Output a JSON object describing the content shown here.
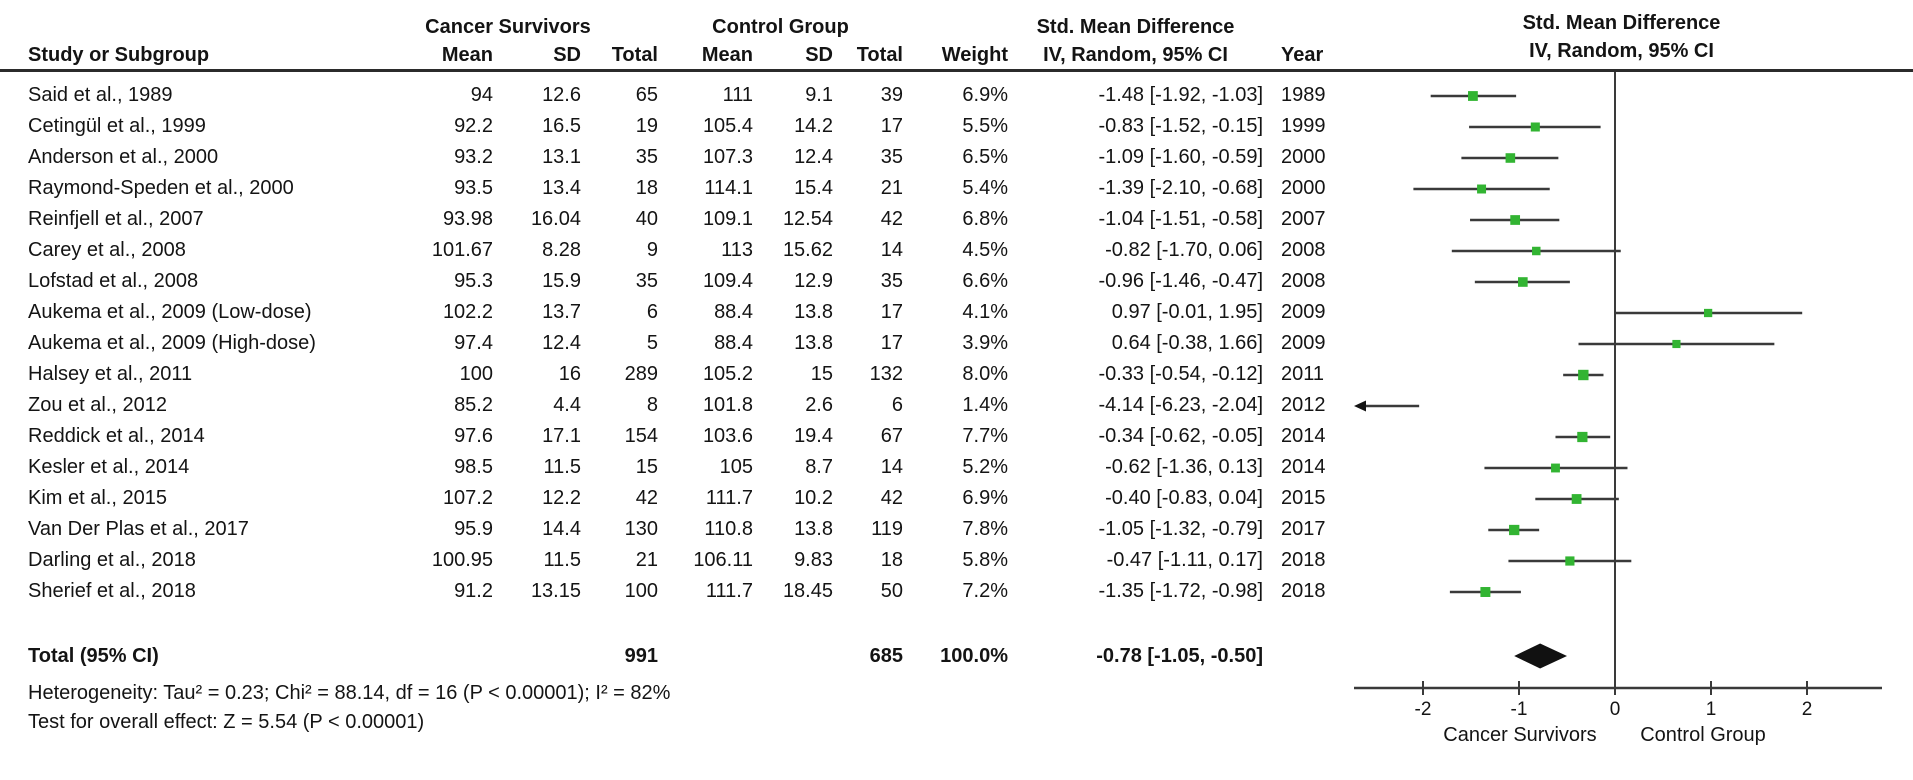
{
  "labels": {
    "study_col": "Study or Subgroup",
    "group1": "Cancer Survivors",
    "group2": "Control Group",
    "mean": "Mean",
    "sd": "SD",
    "total": "Total",
    "weight": "Weight",
    "iv_col": "IV, Random, 95% CI",
    "year": "Year",
    "smd": "Std. Mean Difference",
    "plot_title": "Std. Mean Difference",
    "plot_subtitle": "IV, Random, 95% CI"
  },
  "chart_data": {
    "type": "forest",
    "title": "Std. Mean Difference",
    "subtitle": "IV, Random, 95% CI",
    "effect_measure": "Std. Mean Difference",
    "model": "IV, Random, 95% CI",
    "xlim": [
      -2.72,
      2.78
    ],
    "ticks": [
      -2,
      -1,
      0,
      1,
      2
    ],
    "zero_line": 0,
    "axis_label_left": "Cancer Survivors",
    "axis_label_right": "Control Group",
    "marker_color": "#32b432",
    "studies": [
      {
        "name": "Said et al., 1989",
        "cs_mean": "94",
        "cs_sd": "12.6",
        "cs_total": "65",
        "c_mean": "111",
        "c_sd": "9.1",
        "c_total": "39",
        "weight": "6.9%",
        "weight_val": 6.9,
        "est": -1.48,
        "lo": -1.92,
        "hi": -1.03,
        "ci": "-1.48 [-1.92, -1.03]",
        "year": "1989"
      },
      {
        "name": "Cetingül et al., 1999",
        "cs_mean": "92.2",
        "cs_sd": "16.5",
        "cs_total": "19",
        "c_mean": "105.4",
        "c_sd": "14.2",
        "c_total": "17",
        "weight": "5.5%",
        "weight_val": 5.5,
        "est": -0.83,
        "lo": -1.52,
        "hi": -0.15,
        "ci": "-0.83 [-1.52, -0.15]",
        "year": "1999"
      },
      {
        "name": "Anderson et al., 2000",
        "cs_mean": "93.2",
        "cs_sd": "13.1",
        "cs_total": "35",
        "c_mean": "107.3",
        "c_sd": "12.4",
        "c_total": "35",
        "weight": "6.5%",
        "weight_val": 6.5,
        "est": -1.09,
        "lo": -1.6,
        "hi": -0.59,
        "ci": "-1.09 [-1.60, -0.59]",
        "year": "2000"
      },
      {
        "name": "Raymond-Speden et al., 2000",
        "cs_mean": "93.5",
        "cs_sd": "13.4",
        "cs_total": "18",
        "c_mean": "114.1",
        "c_sd": "15.4",
        "c_total": "21",
        "weight": "5.4%",
        "weight_val": 5.4,
        "est": -1.39,
        "lo": -2.1,
        "hi": -0.68,
        "ci": "-1.39 [-2.10, -0.68]",
        "year": "2000"
      },
      {
        "name": "Reinfjell et al., 2007",
        "cs_mean": "93.98",
        "cs_sd": "16.04",
        "cs_total": "40",
        "c_mean": "109.1",
        "c_sd": "12.54",
        "c_total": "42",
        "weight": "6.8%",
        "weight_val": 6.8,
        "est": -1.04,
        "lo": -1.51,
        "hi": -0.58,
        "ci": "-1.04 [-1.51, -0.58]",
        "year": "2007"
      },
      {
        "name": "Carey et al., 2008",
        "cs_mean": "101.67",
        "cs_sd": "8.28",
        "cs_total": "9",
        "c_mean": "113",
        "c_sd": "15.62",
        "c_total": "14",
        "weight": "4.5%",
        "weight_val": 4.5,
        "est": -0.82,
        "lo": -1.7,
        "hi": 0.06,
        "ci": "-0.82 [-1.70, 0.06]",
        "year": "2008"
      },
      {
        "name": "Lofstad et al., 2008",
        "cs_mean": "95.3",
        "cs_sd": "15.9",
        "cs_total": "35",
        "c_mean": "109.4",
        "c_sd": "12.9",
        "c_total": "35",
        "weight": "6.6%",
        "weight_val": 6.6,
        "est": -0.96,
        "lo": -1.46,
        "hi": -0.47,
        "ci": "-0.96 [-1.46, -0.47]",
        "year": "2008"
      },
      {
        "name": "Aukema et al., 2009 (Low-dose)",
        "cs_mean": "102.2",
        "cs_sd": "13.7",
        "cs_total": "6",
        "c_mean": "88.4",
        "c_sd": "13.8",
        "c_total": "17",
        "weight": "4.1%",
        "weight_val": 4.1,
        "est": 0.97,
        "lo": -0.01,
        "hi": 1.95,
        "ci": "0.97 [-0.01, 1.95]",
        "year": "2009"
      },
      {
        "name": "Aukema et al., 2009 (High-dose)",
        "cs_mean": "97.4",
        "cs_sd": "12.4",
        "cs_total": "5",
        "c_mean": "88.4",
        "c_sd": "13.8",
        "c_total": "17",
        "weight": "3.9%",
        "weight_val": 3.9,
        "est": 0.64,
        "lo": -0.38,
        "hi": 1.66,
        "ci": "0.64 [-0.38, 1.66]",
        "year": "2009"
      },
      {
        "name": "Halsey et al., 2011",
        "cs_mean": "100",
        "cs_sd": "16",
        "cs_total": "289",
        "c_mean": "105.2",
        "c_sd": "15",
        "c_total": "132",
        "weight": "8.0%",
        "weight_val": 8.0,
        "est": -0.33,
        "lo": -0.54,
        "hi": -0.12,
        "ci": "-0.33 [-0.54, -0.12]",
        "year": "2011"
      },
      {
        "name": "Zou et al., 2012",
        "cs_mean": "85.2",
        "cs_sd": "4.4",
        "cs_total": "8",
        "c_mean": "101.8",
        "c_sd": "2.6",
        "c_total": "6",
        "weight": "1.4%",
        "weight_val": 1.4,
        "est": -4.14,
        "lo": -6.23,
        "hi": -2.04,
        "ci": "-4.14 [-6.23, -2.04]",
        "year": "2012"
      },
      {
        "name": "Reddick et al., 2014",
        "cs_mean": "97.6",
        "cs_sd": "17.1",
        "cs_total": "154",
        "c_mean": "103.6",
        "c_sd": "19.4",
        "c_total": "67",
        "weight": "7.7%",
        "weight_val": 7.7,
        "est": -0.34,
        "lo": -0.62,
        "hi": -0.05,
        "ci": "-0.34 [-0.62, -0.05]",
        "year": "2014"
      },
      {
        "name": "Kesler et al., 2014",
        "cs_mean": "98.5",
        "cs_sd": "11.5",
        "cs_total": "15",
        "c_mean": "105",
        "c_sd": "8.7",
        "c_total": "14",
        "weight": "5.2%",
        "weight_val": 5.2,
        "est": -0.62,
        "lo": -1.36,
        "hi": 0.13,
        "ci": "-0.62 [-1.36, 0.13]",
        "year": "2014"
      },
      {
        "name": "Kim et al., 2015",
        "cs_mean": "107.2",
        "cs_sd": "12.2",
        "cs_total": "42",
        "c_mean": "111.7",
        "c_sd": "10.2",
        "c_total": "42",
        "weight": "6.9%",
        "weight_val": 6.9,
        "est": -0.4,
        "lo": -0.83,
        "hi": 0.04,
        "ci": "-0.40 [-0.83, 0.04]",
        "year": "2015"
      },
      {
        "name": "Van Der Plas et al., 2017",
        "cs_mean": "95.9",
        "cs_sd": "14.4",
        "cs_total": "130",
        "c_mean": "110.8",
        "c_sd": "13.8",
        "c_total": "119",
        "weight": "7.8%",
        "weight_val": 7.8,
        "est": -1.05,
        "lo": -1.32,
        "hi": -0.79,
        "ci": "-1.05 [-1.32, -0.79]",
        "year": "2017"
      },
      {
        "name": "Darling et al., 2018",
        "cs_mean": "100.95",
        "cs_sd": "11.5",
        "cs_total": "21",
        "c_mean": "106.11",
        "c_sd": "9.83",
        "c_total": "18",
        "weight": "5.8%",
        "weight_val": 5.8,
        "est": -0.47,
        "lo": -1.11,
        "hi": 0.17,
        "ci": "-0.47 [-1.11, 0.17]",
        "year": "2018"
      },
      {
        "name": "Sherief et al., 2018",
        "cs_mean": "91.2",
        "cs_sd": "13.15",
        "cs_total": "100",
        "c_mean": "111.7",
        "c_sd": "18.45",
        "c_total": "50",
        "weight": "7.2%",
        "weight_val": 7.2,
        "est": -1.35,
        "lo": -1.72,
        "hi": -0.98,
        "ci": "-1.35 [-1.72, -0.98]",
        "year": "2018"
      }
    ],
    "total": {
      "label": "Total (95% CI)",
      "cs_total": "991",
      "c_total": "685",
      "weight": "100.0%",
      "est": -0.78,
      "lo": -1.05,
      "hi": -0.5,
      "ci": "-0.78 [-1.05, -0.50]"
    },
    "heterogeneity": "Heterogeneity: Tau² = 0.23; Chi² = 88.14, df = 16 (P < 0.00001); I² = 82%",
    "overall_effect": "Test for overall effect: Z = 5.54 (P < 0.00001)"
  }
}
